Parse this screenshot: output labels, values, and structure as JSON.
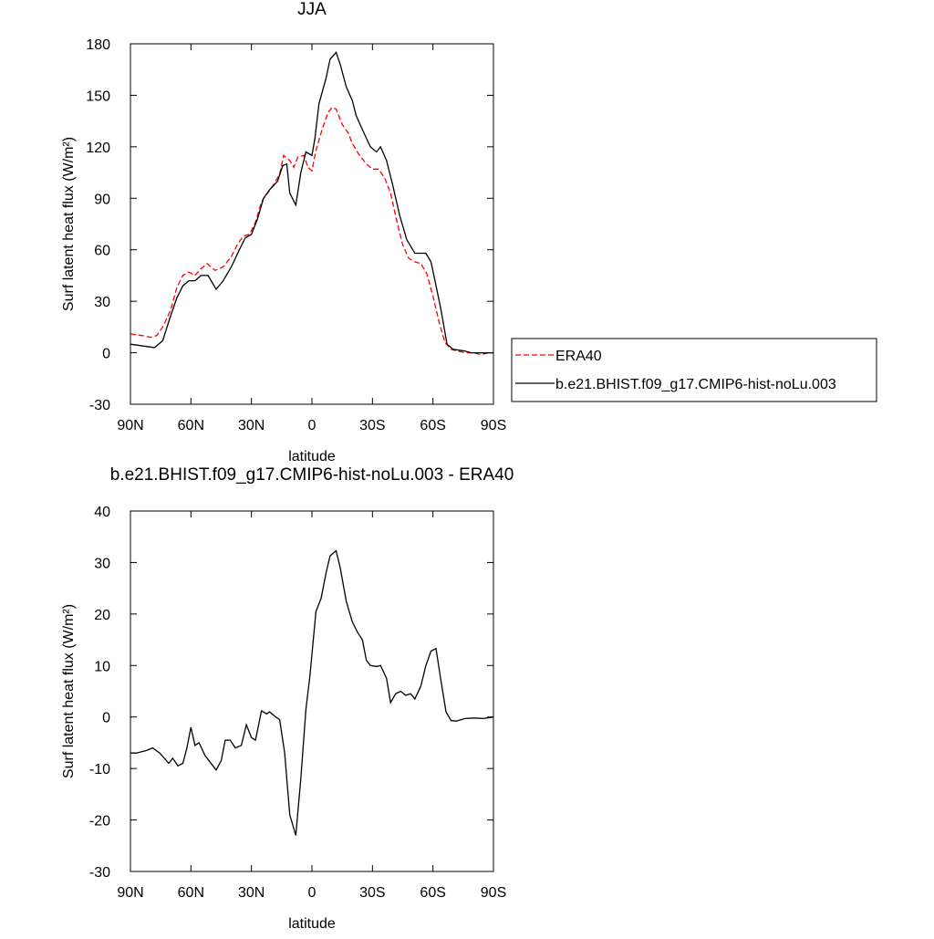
{
  "chart_data": [
    {
      "type": "line",
      "title": "JJA",
      "x_label": "latitude",
      "y_label": "Surf latent heat flux (W/m²)",
      "xlim": [
        90,
        -90
      ],
      "ylim": [
        -30,
        180
      ],
      "xticks": [
        {
          "value": 90,
          "label": "90N"
        },
        {
          "value": 60,
          "label": "60N"
        },
        {
          "value": 30,
          "label": "30N"
        },
        0,
        {
          "value": -30,
          "label": "30S"
        },
        {
          "value": -60,
          "label": "60S"
        },
        {
          "value": -90,
          "label": "90S"
        }
      ],
      "yticks": [
        -30,
        0,
        30,
        60,
        90,
        120,
        150,
        180
      ],
      "legend": "right",
      "series": [
        {
          "name": "ERA40",
          "color": "#ff0000",
          "dashed": true,
          "x": [
            90,
            84,
            80,
            77,
            74,
            70,
            67,
            64,
            61,
            58,
            55,
            52,
            48,
            44,
            40,
            37,
            34,
            31,
            28,
            25,
            22,
            19,
            16,
            14,
            11,
            9,
            7,
            4,
            2,
            0,
            -2,
            -5,
            -8,
            -10,
            -12,
            -15,
            -18,
            -20,
            -23,
            -27,
            -30,
            -33,
            -36,
            -39,
            -42,
            -45,
            -48,
            -51,
            -54,
            -57,
            -60,
            -63,
            -66,
            -69,
            -72,
            -76,
            -80,
            -84,
            -88,
            -90
          ],
          "values": [
            11,
            10,
            9,
            10,
            15,
            25,
            38,
            45,
            47,
            45,
            49,
            52,
            48,
            50,
            56,
            63,
            68,
            69,
            76,
            88,
            93,
            98,
            104,
            115,
            112,
            108,
            114,
            115,
            108,
            106,
            118,
            130,
            140,
            143,
            142,
            133,
            128,
            122,
            116,
            110,
            107,
            107,
            102,
            93,
            77,
            63,
            55,
            53,
            52,
            46,
            33,
            18,
            6,
            2,
            1,
            0,
            0,
            -1,
            0,
            0
          ]
        },
        {
          "name": "b.e21.BHIST.f09_g17.CMIP6-hist-noLu.003",
          "color": "#000000",
          "dashed": false,
          "x": [
            90,
            78,
            74,
            70.5,
            67,
            64,
            61,
            58,
            55,
            51.5,
            47.5,
            44,
            40,
            36,
            33,
            30,
            27,
            24,
            21,
            17,
            14.5,
            12.5,
            11,
            8,
            5.5,
            3,
            0,
            -1.5,
            -3.5,
            -7,
            -9,
            -12,
            -14,
            -17,
            -20,
            -22,
            -25,
            -29,
            -32,
            -34,
            -37,
            -40,
            -43.5,
            -47,
            -51,
            -53.5,
            -56.5,
            -59,
            -61,
            -64,
            -67,
            -70,
            -76,
            -79,
            -83,
            -90
          ],
          "values": [
            5,
            3,
            7,
            20,
            32,
            39,
            42,
            42,
            45,
            45,
            37,
            42,
            50,
            60,
            67,
            69,
            78,
            90,
            95,
            100,
            109,
            110,
            93,
            86,
            105,
            117,
            115,
            125,
            145,
            160,
            171,
            175,
            168,
            155,
            147,
            138,
            130,
            120,
            117,
            120,
            112,
            98,
            80,
            66,
            58,
            58,
            58,
            53,
            42,
            25,
            5,
            2,
            1,
            0,
            0,
            0
          ]
        }
      ]
    },
    {
      "type": "line",
      "title": "b.e21.BHIST.f09_g17.CMIP6-hist-noLu.003 - ERA40",
      "x_label": "latitude",
      "y_label": "Surf latent heat flux (W/m²)",
      "xlim": [
        90,
        -90
      ],
      "ylim": [
        -30,
        40
      ],
      "xticks": [
        {
          "value": 90,
          "label": "90N"
        },
        {
          "value": 60,
          "label": "60N"
        },
        {
          "value": 30,
          "label": "30N"
        },
        0,
        {
          "value": -30,
          "label": "30S"
        },
        {
          "value": -60,
          "label": "60S"
        },
        {
          "value": -90,
          "label": "90S"
        }
      ],
      "yticks": [
        -30,
        -20,
        -10,
        0,
        10,
        20,
        30,
        40
      ],
      "color": "#000000",
      "x": [
        90,
        87,
        82,
        79,
        75.5,
        71,
        69,
        66.5,
        64,
        62,
        60,
        58,
        56,
        53,
        51,
        47.5,
        45,
        43,
        40.5,
        38,
        35,
        32.5,
        30,
        28,
        25,
        22.5,
        21,
        18,
        16,
        13.5,
        11,
        8,
        5.5,
        3,
        1,
        -2,
        -4.5,
        -7,
        -9,
        -12,
        -14,
        -17,
        -20,
        -22.5,
        -25,
        -27,
        -29,
        -32,
        -34,
        -37,
        -39,
        -41.5,
        -44,
        -46.5,
        -49,
        -51,
        -54,
        -56.5,
        -59,
        -61.5,
        -64,
        -66.5,
        -69,
        -71.5,
        -76,
        -80.5,
        -85,
        -90
      ],
      "values": [
        -7,
        -7,
        -6.5,
        -6,
        -7,
        -9,
        -8,
        -9.5,
        -9,
        -6,
        -2,
        -5.5,
        -5,
        -7.5,
        -8.5,
        -10.3,
        -8.5,
        -4.5,
        -4.5,
        -6,
        -5.5,
        -1.5,
        -4,
        -4.5,
        1.2,
        0.6,
        1,
        0,
        -0.5,
        -7,
        -19,
        -23,
        -12,
        1.5,
        8,
        20.5,
        23,
        28,
        31.3,
        32.3,
        29,
        22.5,
        18.5,
        16.5,
        15,
        11,
        10,
        9.8,
        10,
        7.5,
        2.8,
        4.5,
        5,
        4.2,
        4.5,
        3.5,
        6,
        10,
        12.8,
        13.3,
        7,
        1,
        -0.7,
        -0.8,
        -0.3,
        -0.2,
        -0.3,
        0
      ]
    }
  ]
}
